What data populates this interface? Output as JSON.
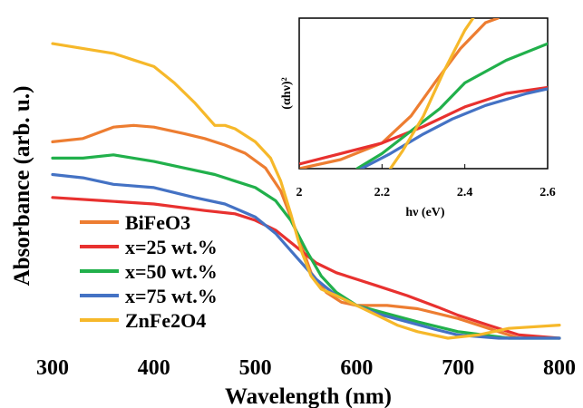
{
  "chart_data": [
    {
      "type": "line",
      "title": "",
      "xlabel": "Wavelength (nm)",
      "ylabel": "Absorbance (arb. u.)",
      "xlim": [
        300,
        800
      ],
      "ylim": [
        0,
        1
      ],
      "xticks": [
        "300",
        "400",
        "500",
        "600",
        "700",
        "800"
      ],
      "grid": false,
      "legend_position": "bottom-left",
      "series": [
        {
          "name": "BiFeO3",
          "color": "#ED7D31",
          "x": [
            300,
            330,
            360,
            380,
            400,
            430,
            450,
            470,
            490,
            510,
            525,
            540,
            555,
            570,
            585,
            600,
            630,
            660,
            700,
            740,
            760
          ],
          "y": [
            0.6,
            0.61,
            0.645,
            0.65,
            0.645,
            0.625,
            0.61,
            0.59,
            0.565,
            0.52,
            0.45,
            0.33,
            0.2,
            0.14,
            0.11,
            0.1,
            0.1,
            0.09,
            0.06,
            0.02,
            0.0
          ]
        },
        {
          "name": "x=25 wt.%",
          "color": "#E8312F",
          "x": [
            300,
            350,
            400,
            450,
            480,
            500,
            520,
            540,
            560,
            580,
            600,
            620,
            650,
            680,
            700,
            730,
            760,
            800
          ],
          "y": [
            0.43,
            0.42,
            0.41,
            0.39,
            0.38,
            0.36,
            0.33,
            0.28,
            0.23,
            0.2,
            0.18,
            0.16,
            0.13,
            0.095,
            0.07,
            0.04,
            0.01,
            0.0
          ]
        },
        {
          "name": "x=50 wt.%",
          "color": "#21B04B",
          "x": [
            300,
            330,
            360,
            380,
            400,
            430,
            460,
            480,
            500,
            520,
            535,
            550,
            565,
            580,
            600,
            630,
            660,
            700,
            750,
            800
          ],
          "y": [
            0.55,
            0.55,
            0.56,
            0.55,
            0.54,
            0.52,
            0.5,
            0.48,
            0.46,
            0.42,
            0.36,
            0.27,
            0.19,
            0.14,
            0.1,
            0.075,
            0.05,
            0.02,
            0.0,
            0.0
          ]
        },
        {
          "name": "x=75 wt.%",
          "color": "#4472C4",
          "x": [
            300,
            330,
            360,
            400,
            440,
            470,
            500,
            520,
            540,
            560,
            580,
            600,
            620,
            650,
            680,
            700,
            740,
            800
          ],
          "y": [
            0.5,
            0.49,
            0.47,
            0.46,
            0.43,
            0.41,
            0.37,
            0.32,
            0.25,
            0.18,
            0.13,
            0.1,
            0.075,
            0.05,
            0.025,
            0.01,
            0.0,
            0.0
          ]
        },
        {
          "name": "ZnFe2O4",
          "color": "#F6B82A",
          "x": [
            300,
            320,
            340,
            360,
            370,
            380,
            400,
            420,
            440,
            460,
            470,
            480,
            500,
            515,
            525,
            535,
            545,
            555,
            565,
            580,
            600,
            620,
            640,
            660,
            690,
            720,
            750,
            800
          ],
          "y": [
            0.9,
            0.89,
            0.88,
            0.87,
            0.86,
            0.85,
            0.83,
            0.78,
            0.72,
            0.65,
            0.65,
            0.64,
            0.6,
            0.55,
            0.48,
            0.38,
            0.27,
            0.19,
            0.15,
            0.13,
            0.1,
            0.07,
            0.04,
            0.02,
            0.0,
            0.01,
            0.03,
            0.04
          ]
        }
      ]
    },
    {
      "type": "line",
      "title": "",
      "xlabel": "hν (eV)",
      "ylabel": "(αhν)²",
      "xlim": [
        2.0,
        2.6
      ],
      "ylim": [
        0,
        1
      ],
      "xticks": [
        "2",
        "2.2",
        "2.4",
        "2.6"
      ],
      "grid": false,
      "series": [
        {
          "color": "#ED7D31",
          "x": [
            2.0,
            2.1,
            2.2,
            2.27,
            2.33,
            2.39,
            2.45,
            2.48
          ],
          "y": [
            0.0,
            0.06,
            0.17,
            0.35,
            0.58,
            0.8,
            0.97,
            1.0
          ]
        },
        {
          "color": "#E8312F",
          "x": [
            2.0,
            2.1,
            2.2,
            2.3,
            2.4,
            2.5,
            2.6
          ],
          "y": [
            0.03,
            0.1,
            0.17,
            0.28,
            0.41,
            0.5,
            0.54
          ]
        },
        {
          "color": "#21B04B",
          "x": [
            2.14,
            2.2,
            2.27,
            2.34,
            2.4,
            2.5,
            2.6
          ],
          "y": [
            0.0,
            0.1,
            0.25,
            0.4,
            0.57,
            0.72,
            0.83
          ]
        },
        {
          "color": "#4472C4",
          "x": [
            2.15,
            2.22,
            2.3,
            2.37,
            2.45,
            2.55,
            2.6
          ],
          "y": [
            0.0,
            0.1,
            0.23,
            0.33,
            0.42,
            0.5,
            0.53
          ]
        },
        {
          "color": "#F6B82A",
          "x": [
            2.22,
            2.25,
            2.3,
            2.35,
            2.4,
            2.42
          ],
          "y": [
            0.0,
            0.12,
            0.35,
            0.65,
            0.92,
            1.0
          ]
        }
      ]
    }
  ]
}
